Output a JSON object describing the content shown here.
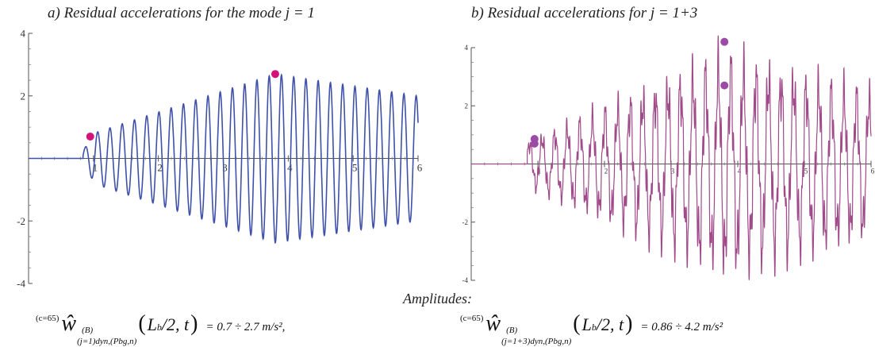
{
  "titles": {
    "a": "a) Residual accelerations for the mode j = 1",
    "b": "b) Residual accelerations for j = 1+3"
  },
  "amplitudes_heading": "Amplitudes:",
  "formulas": {
    "a": {
      "prefix": "(c=65)",
      "symbol": "ŵ",
      "superscript": "(B)",
      "subscript": "(j=1)dyn,(Pbg,n)",
      "argument_L": "L",
      "argument_b": "b",
      "argument_rest": "/2, t",
      "value": "= 0.7 ÷ 2.7 m/s²,"
    },
    "b": {
      "prefix": "(c=65)",
      "symbol": "ŵ",
      "superscript": "(B)",
      "subscript": "(j=1+3)dyn,(Pbg,n)",
      "argument_L": "L",
      "argument_b": "b",
      "argument_rest": "/2, t",
      "value": "= 0.86 ÷ 4.2 m/s²"
    }
  },
  "chart_data": [
    {
      "type": "line",
      "title": "a) Residual accelerations for the mode j = 1",
      "xlim": [
        0,
        6
      ],
      "ylim": [
        -4,
        4
      ],
      "x_ticks": [
        "1",
        "2",
        "3",
        "4",
        "5",
        "6"
      ],
      "y_ticks": [
        "4",
        "2",
        "-2",
        "-4"
      ],
      "series": [
        {
          "color": "#3f51a8",
          "signal": {
            "start": 0.84,
            "end": 6.0,
            "frequency_hz": 5.3,
            "envelope": [
              [
                0.84,
                0.7
              ],
              [
                3.8,
                2.7
              ],
              [
                6.0,
                2.0
              ]
            ]
          }
        }
      ],
      "markers": [
        {
          "x": 0.95,
          "y": 0.7,
          "color": "#d4137a"
        },
        {
          "x": 3.8,
          "y": 2.7,
          "color": "#d4137a"
        }
      ]
    },
    {
      "type": "line",
      "title": "b) Residual accelerations for j = 1+3",
      "xlim": [
        0,
        6
      ],
      "ylim": [
        -4,
        4
      ],
      "x_ticks": [
        "1",
        "2",
        "3",
        "4",
        "5",
        "6"
      ],
      "y_ticks": [
        "4",
        "2",
        "-2",
        "-4"
      ],
      "series": [
        {
          "color": "#a04a8a",
          "signal": {
            "start": 0.84,
            "end": 6.0,
            "frequency_hz": 5.3,
            "envelope": [
              [
                0.84,
                0.86
              ],
              [
                3.8,
                4.2
              ],
              [
                6.0,
                2.8
              ]
            ]
          }
        }
      ],
      "markers": [
        {
          "x": 0.95,
          "y": 0.86,
          "color": "#9b4aa6"
        },
        {
          "x": 0.95,
          "y": 0.7,
          "color": "#9b4aa6"
        },
        {
          "x": 3.8,
          "y": 4.2,
          "color": "#9b4aa6"
        },
        {
          "x": 3.8,
          "y": 2.7,
          "color": "#9b4aa6"
        }
      ]
    }
  ]
}
